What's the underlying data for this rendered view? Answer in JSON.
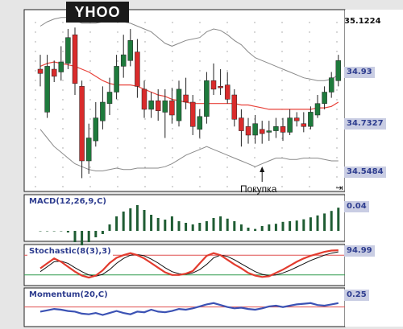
{
  "header": {
    "ticker": "YHOO"
  },
  "price_panel": {
    "top_label": "35.1224",
    "right_labels": [
      {
        "text": "34.93",
        "style": "box",
        "value": 34.93
      },
      {
        "text": "34.7327",
        "style": "box",
        "value": 34.7327
      },
      {
        "text": "34.5484",
        "style": "box",
        "value": 34.5484
      }
    ],
    "annotation": "Покупка",
    "scroll_icon": "scroll-end-icon"
  },
  "indicators": {
    "macd": {
      "label": "MACD(12,26,9,C)",
      "value_label": "0.04"
    },
    "stochastic": {
      "label": "Stochastic(8(3),3)",
      "value_label": "94.99"
    },
    "momentum": {
      "label": "Momentum(20,C)",
      "value_label": "0.25"
    }
  },
  "colors": {
    "up": "#1e7a3c",
    "down": "#d92b2b",
    "ma": "#e8423a",
    "band": "#8a8a8a",
    "macd": "#1f5c33",
    "stoch_k": "#e23b2e",
    "stoch_d": "#111111",
    "momentum": "#3b52b4",
    "level_red": "#e05050",
    "level_green": "#2f9a4d"
  },
  "chart_data": {
    "type": "candlestick",
    "candles": [
      {
        "o": 68,
        "c": 65,
        "h": 78,
        "l": 56
      },
      {
        "o": 38,
        "c": 70,
        "h": 78,
        "l": 34
      },
      {
        "o": 68,
        "c": 63,
        "h": 74,
        "l": 59
      },
      {
        "o": 66,
        "c": 73,
        "h": 84,
        "l": 60
      },
      {
        "o": 72,
        "c": 90,
        "h": 96,
        "l": 68
      },
      {
        "o": 92,
        "c": 58,
        "h": 97,
        "l": 50
      },
      {
        "o": 56,
        "c": 4,
        "h": 60,
        "l": -8
      },
      {
        "o": 4,
        "c": 20,
        "h": 30,
        "l": -5
      },
      {
        "o": 18,
        "c": 34,
        "h": 45,
        "l": 14
      },
      {
        "o": 32,
        "c": 45,
        "h": 56,
        "l": 26
      },
      {
        "o": 44,
        "c": 52,
        "h": 62,
        "l": 36
      },
      {
        "o": 52,
        "c": 70,
        "h": 78,
        "l": 47
      },
      {
        "o": 70,
        "c": 78,
        "h": 92,
        "l": 62
      },
      {
        "o": 74,
        "c": 88,
        "h": 96,
        "l": 70
      },
      {
        "o": 80,
        "c": 56,
        "h": 89,
        "l": 48
      },
      {
        "o": 54,
        "c": 40,
        "h": 60,
        "l": 34
      },
      {
        "o": 40,
        "c": 46,
        "h": 52,
        "l": 34
      },
      {
        "o": 46,
        "c": 39,
        "h": 54,
        "l": 32
      },
      {
        "o": 38,
        "c": 46,
        "h": 54,
        "l": 20
      },
      {
        "o": 46,
        "c": 36,
        "h": 55,
        "l": 30
      },
      {
        "o": 32,
        "c": 54,
        "h": 60,
        "l": 28
      },
      {
        "o": 50,
        "c": 45,
        "h": 62,
        "l": 40
      },
      {
        "o": 45,
        "c": 28,
        "h": 50,
        "l": 22
      },
      {
        "o": 26,
        "c": 35,
        "h": 40,
        "l": 20
      },
      {
        "o": 35,
        "c": 60,
        "h": 66,
        "l": 30
      },
      {
        "o": 60,
        "c": 54,
        "h": 72,
        "l": 50
      },
      {
        "o": 56,
        "c": 55,
        "h": 68,
        "l": 50
      },
      {
        "o": 57,
        "c": 47,
        "h": 66,
        "l": 44
      },
      {
        "o": 50,
        "c": 33,
        "h": 54,
        "l": 28
      },
      {
        "o": 34,
        "c": 25,
        "h": 40,
        "l": 14
      },
      {
        "o": 28,
        "c": 22,
        "h": 34,
        "l": 16
      },
      {
        "o": 22,
        "c": 30,
        "h": 36,
        "l": 16
      },
      {
        "o": 26,
        "c": 23,
        "h": 32,
        "l": 16
      },
      {
        "o": 24,
        "c": 25,
        "h": 32,
        "l": 18
      },
      {
        "o": 25,
        "c": 28,
        "h": 34,
        "l": 20
      },
      {
        "o": 28,
        "c": 24,
        "h": 34,
        "l": 18
      },
      {
        "o": 24,
        "c": 34,
        "h": 40,
        "l": 22
      },
      {
        "o": 34,
        "c": 32,
        "h": 38,
        "l": 28
      },
      {
        "o": 30,
        "c": 28,
        "h": 38,
        "l": 24
      },
      {
        "o": 28,
        "c": 38,
        "h": 42,
        "l": 26
      },
      {
        "o": 36,
        "c": 44,
        "h": 50,
        "l": 34
      },
      {
        "o": 44,
        "c": 52,
        "h": 56,
        "l": 40
      },
      {
        "o": 52,
        "c": 62,
        "h": 66,
        "l": 48
      },
      {
        "o": 60,
        "c": 74,
        "h": 78,
        "l": 56
      }
    ],
    "ma": [
      70,
      72,
      73,
      72,
      71,
      70,
      68,
      66,
      63,
      60,
      58,
      57,
      57,
      57,
      56,
      54,
      52,
      50,
      49,
      47,
      46,
      45,
      44,
      44,
      44,
      44,
      44,
      44,
      44,
      43,
      43,
      42,
      41,
      40,
      40,
      40,
      40,
      40,
      40,
      40,
      41,
      41,
      42,
      45
    ],
    "band_upper": [
      98,
      101,
      103,
      104,
      104,
      102,
      100,
      100,
      100,
      101,
      103,
      102,
      101,
      100,
      98,
      96,
      94,
      90,
      86,
      84,
      86,
      88,
      89,
      90,
      94,
      96,
      95,
      92,
      88,
      85,
      80,
      76,
      74,
      72,
      70,
      68,
      66,
      64,
      62,
      61,
      60,
      60,
      61,
      64
    ],
    "band_lower": [
      26,
      20,
      14,
      10,
      6,
      2,
      0,
      -2,
      -3,
      -3,
      -2,
      -1,
      -2,
      -2,
      -1,
      -1,
      -1,
      -1,
      0,
      2,
      5,
      8,
      10,
      12,
      14,
      12,
      10,
      8,
      6,
      4,
      2,
      0,
      2,
      4,
      6,
      6,
      5,
      5,
      6,
      6,
      6,
      5,
      4,
      4
    ],
    "macd": [
      0,
      0,
      0,
      0,
      -5,
      -35,
      -45,
      -35,
      -20,
      -10,
      20,
      45,
      60,
      70,
      80,
      65,
      50,
      40,
      35,
      45,
      30,
      25,
      20,
      25,
      30,
      40,
      45,
      38,
      30,
      20,
      10,
      6,
      15,
      20,
      22,
      28,
      30,
      32,
      36,
      42,
      48,
      54,
      62,
      72
    ],
    "stoch_k": [
      40,
      55,
      70,
      60,
      45,
      30,
      18,
      12,
      18,
      34,
      56,
      72,
      80,
      86,
      80,
      70,
      56,
      42,
      28,
      20,
      20,
      24,
      32,
      55,
      78,
      86,
      80,
      66,
      52,
      40,
      26,
      18,
      14,
      16,
      26,
      36,
      48,
      60,
      70,
      78,
      84,
      90,
      94,
      95
    ],
    "stoch_d": [
      30,
      45,
      60,
      62,
      55,
      42,
      30,
      20,
      16,
      22,
      36,
      55,
      70,
      80,
      82,
      78,
      68,
      56,
      42,
      30,
      24,
      22,
      26,
      36,
      52,
      72,
      80,
      76,
      66,
      54,
      42,
      30,
      22,
      18,
      20,
      26,
      34,
      44,
      54,
      64,
      72,
      80,
      86,
      90
    ],
    "momentum": [
      38,
      42,
      46,
      44,
      40,
      38,
      32,
      30,
      34,
      28,
      34,
      40,
      34,
      30,
      38,
      36,
      44,
      38,
      36,
      40,
      46,
      44,
      48,
      54,
      60,
      64,
      58,
      52,
      48,
      50,
      46,
      44,
      48,
      54,
      56,
      52,
      56,
      60,
      62,
      64,
      58,
      56,
      60,
      64
    ]
  }
}
